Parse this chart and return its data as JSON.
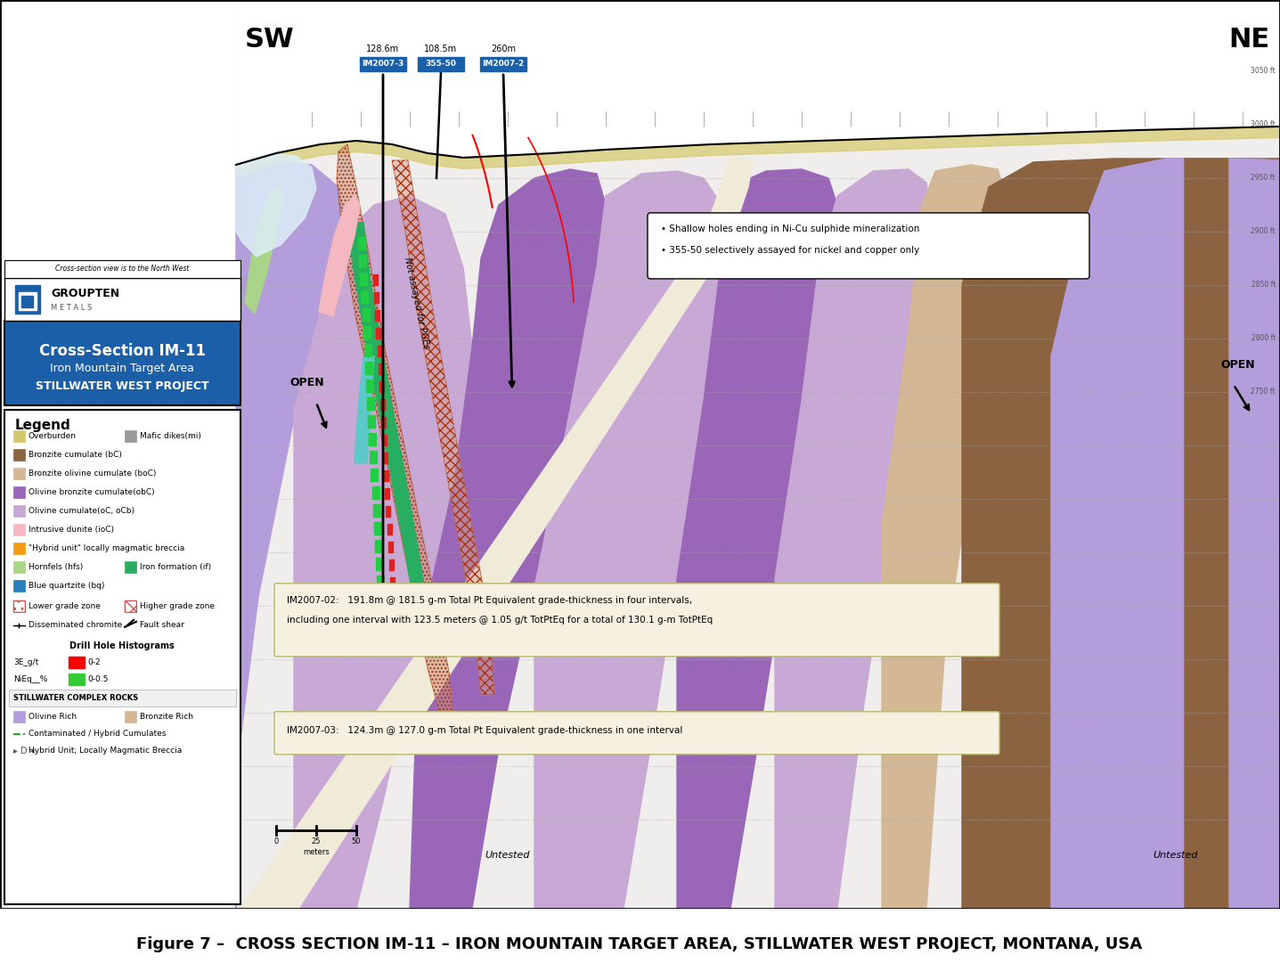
{
  "figure_caption": "Figure 7 –  CROSS SECTION IM-11 – IRON MOUNTAIN TARGET AREA, STILLWATER WEST PROJECT, MONTANA, USA",
  "caption_fontsize": 13,
  "caption_color": "#000000",
  "bg_color": "#ffffff",
  "sw_label": "SW",
  "ne_label": "NE",
  "compass_fontsize": 22,
  "drill_labels": [
    "128.6m",
    "108.5m",
    "260m"
  ],
  "drill_ids": [
    "IM2007-3",
    "355-50",
    "IM2007-2"
  ],
  "drill_id_bg": "#1a5fa8",
  "annotation_bullet1": "Shallow holes ending in Ni-Cu sulphide mineralization",
  "annotation_bullet2": "355-50 selectively assayed for nickel and copper only",
  "open_label_left": "OPEN",
  "open_label_right": "OPEN",
  "untested_left": "Untested",
  "untested_right": "Untested",
  "im2007_02_line1": "IM2007-02:   191.8m @ 181.5 g-m Total Pt Equivalent grade-thickness in four intervals,",
  "im2007_02_line2": "including one interval with 123.5 meters @ 1.05 g/t TotPtEq for a total of 130.1 g-m TotPtEq",
  "im2007_03_line": "IM2007-03:   124.3m @ 127.0 g-m Total Pt Equivalent grade-thickness in one interval",
  "legend_title": "Legend",
  "title_text1": "Cross-Section IM-11",
  "title_text2": "Iron Mountain Target Area",
  "title_text3": "STILLWATER WEST PROJECT",
  "title_box_color": "#1a5fa8",
  "not_assayed_text": "Not assayed for PGEs",
  "scale_label": "meters",
  "cross_section_note": "Cross-section view is to the North West",
  "colors": {
    "overburden": "#d4c96a",
    "mafic_dike": "#999999",
    "bronzite_cumulate": "#8b6340",
    "bronzite_olivine": "#d4b896",
    "olivine_bronzite": "#9966b8",
    "olivine_cumulate": "#c8a8d4",
    "intrusive_dunite": "#f4b8c1",
    "hybrid_unit": "#f39c12",
    "hornfels": "#aad48a",
    "iron_formation": "#27ae60",
    "blue_quartzite": "#2980b9",
    "olivine_rich": "#b39ddb",
    "bronzite_rich": "#d4b896",
    "annotation_bg": "#f5f0e0",
    "annotation_border": "#b8b870",
    "grid_line": "#aaaaaa",
    "red_histogram": "#dd2222",
    "green_histogram": "#33bb33",
    "teal": "#5dc8c8",
    "white_dyke": "#f0ead8",
    "pink_dunite": "#f4b8c1",
    "light_blue_sw": "#ddeef8",
    "purple_main": "#b39ddb",
    "purple_obc": "#9966b8",
    "light_purple": "#c8a8d4",
    "brown_right": "#8b6340",
    "tan_boc": "#d4b896",
    "hatch_zone": "#c8927a",
    "green_band": "#27ae60",
    "hornfels_green": "#aad48a"
  },
  "legend_items_col1": [
    [
      "Overburden",
      "#d4c96a"
    ],
    [
      "Bronzite cumulate (bC)",
      "#8b6340"
    ],
    [
      "Bronzite olivine cumulate (boC)",
      "#d4b896"
    ],
    [
      "Olivine bronzite cumulate(obC)",
      "#9966b8"
    ],
    [
      "Olivine cumulate(oC, oCb)",
      "#c8a8d4"
    ],
    [
      "Intrusive dunite (ioC)",
      "#f4b8c1"
    ],
    [
      "\"Hybrid unit\" locally magmatic breccia",
      "#f39c12"
    ],
    [
      "Hornfels (hfs)",
      "#aad48a"
    ],
    [
      "Blue quartzite (bq)",
      "#2980b9"
    ]
  ],
  "legend_items_col2": [
    [
      "Mafic dikes(mi)",
      "#999999"
    ],
    [
      "Iron formation (if)",
      "#27ae60"
    ]
  ]
}
